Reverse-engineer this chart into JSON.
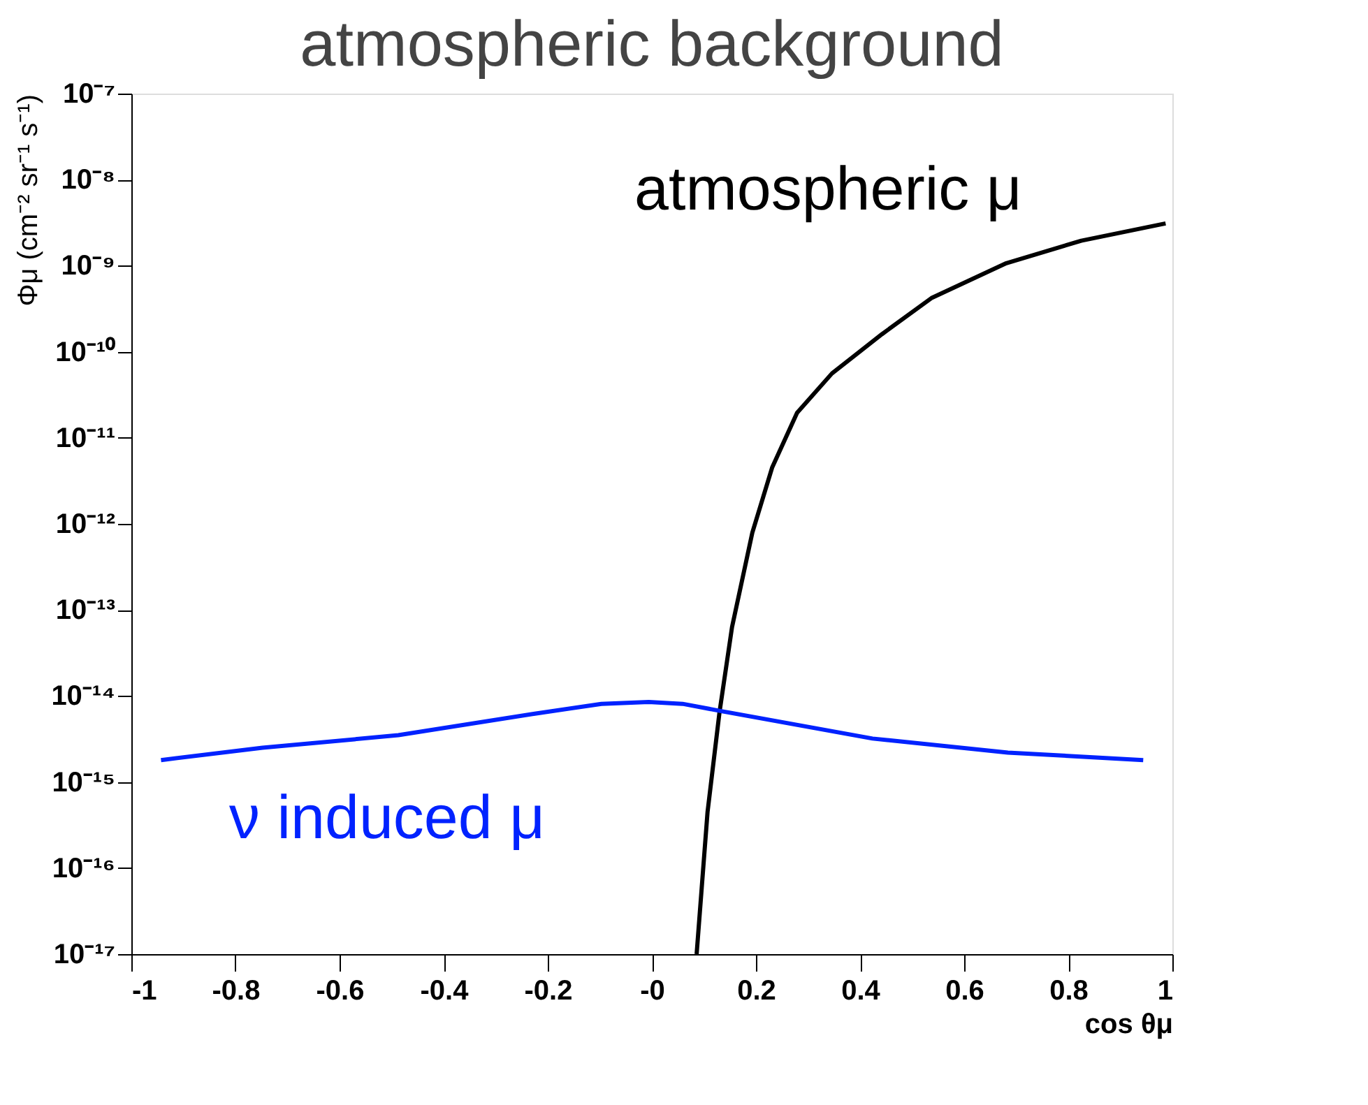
{
  "chart_data": {
    "type": "line",
    "title": "atmospheric background",
    "xlabel": "cos θμ",
    "ylabel": "Φμ (cm⁻² sr⁻¹ s⁻¹)",
    "series": [
      {
        "name": "atmospheric μ",
        "color": "#000000",
        "x": [
          0.086,
          0.107,
          0.13,
          0.154,
          0.193,
          0.231,
          0.279,
          0.346,
          0.442,
          0.537,
          0.681,
          0.825,
          0.987
        ],
        "values": [
          1e-17,
          4.5e-16,
          6.5e-15,
          6.3e-14,
          7.9e-13,
          4.5e-12,
          1.95e-11,
          5.6e-11,
          1.6e-10,
          4.2e-10,
          1.07e-09,
          1.95e-09,
          3.1e-09
        ]
      },
      {
        "name": "ν induced μ",
        "color": "#0022ff",
        "x": [
          -0.943,
          -0.748,
          -0.487,
          -0.227,
          -0.097,
          -0.006,
          0.059,
          0.137,
          0.424,
          0.684,
          0.944
        ],
        "values": [
          1.8e-15,
          2.5e-15,
          3.5e-15,
          6.2e-15,
          8.1e-15,
          8.5e-15,
          8.1e-15,
          6.6e-15,
          3.2e-15,
          2.2e-15,
          1.8e-15
        ]
      }
    ],
    "xlim": [
      -1,
      1
    ],
    "xticks": [
      {
        "value": -1,
        "label": "-1"
      },
      -0.8,
      -0.6,
      -0.4,
      -0.2,
      {
        "value": 0,
        "label": "-0"
      },
      0.2,
      0.4,
      0.6,
      0.8,
      1
    ],
    "ylim": [
      1e-17,
      1e-07
    ],
    "log": true,
    "yticks": [
      {
        "value": 1e-17,
        "label": "10⁻¹⁷"
      },
      {
        "value": 1e-16,
        "label": "10⁻¹⁶"
      },
      {
        "value": 1e-15,
        "label": "10⁻¹⁵"
      },
      {
        "value": 1e-14,
        "label": "10⁻¹⁴"
      },
      {
        "value": 1e-13,
        "label": "10⁻¹³"
      },
      {
        "value": 1e-12,
        "label": "10⁻¹²"
      },
      {
        "value": 1e-11,
        "label": "10⁻¹¹"
      },
      {
        "value": 1e-10,
        "label": "10⁻¹⁰"
      },
      {
        "value": 1e-09,
        "label": "10⁻⁹"
      },
      {
        "value": 1e-08,
        "label": "10⁻⁸"
      },
      {
        "value": 1e-07,
        "label": "10⁻⁷"
      }
    ],
    "grid": false,
    "legend": false,
    "line_style": "solid",
    "marker": "none"
  }
}
